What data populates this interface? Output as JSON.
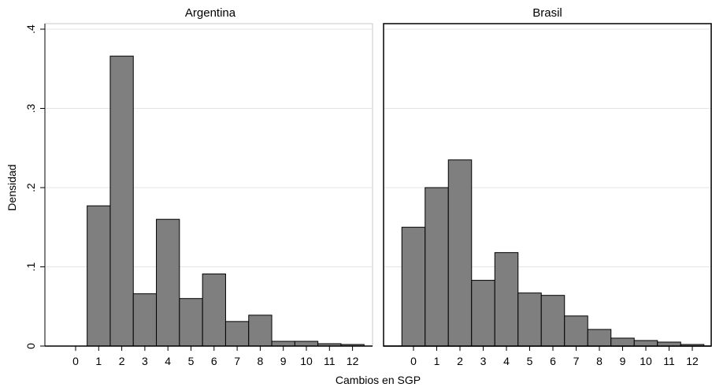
{
  "chart_data": [
    {
      "type": "bar",
      "title": "Argentina",
      "categories": [
        "0",
        "1",
        "2",
        "3",
        "4",
        "5",
        "6",
        "7",
        "8",
        "9",
        "10",
        "11",
        "12"
      ],
      "values": [
        0,
        0.177,
        0.366,
        0.066,
        0.16,
        0.06,
        0.091,
        0.031,
        0.039,
        0.006,
        0.006,
        0.003,
        0.002
      ],
      "xlabel": "Cambios en SGP",
      "ylabel": "Densidad",
      "ylim": [
        0,
        0.4
      ],
      "yticks": [
        ".4",
        ".3",
        ".2",
        ".1",
        "0"
      ],
      "grid": true,
      "bar_color": "#7f7f7f"
    },
    {
      "type": "bar",
      "title": "Brasil",
      "categories": [
        "0",
        "1",
        "2",
        "3",
        "4",
        "5",
        "6",
        "7",
        "8",
        "9",
        "10",
        "11",
        "12"
      ],
      "values": [
        0.15,
        0.2,
        0.235,
        0.083,
        0.118,
        0.067,
        0.064,
        0.038,
        0.021,
        0.01,
        0.007,
        0.005,
        0.002
      ],
      "xlabel": "Cambios en SGP",
      "ylabel": "Densidad",
      "ylim": [
        0,
        0.4
      ],
      "grid": true,
      "bar_color": "#7f7f7f"
    }
  ],
  "xlabel": "Cambios en SGP",
  "ylabel": "Densidad"
}
